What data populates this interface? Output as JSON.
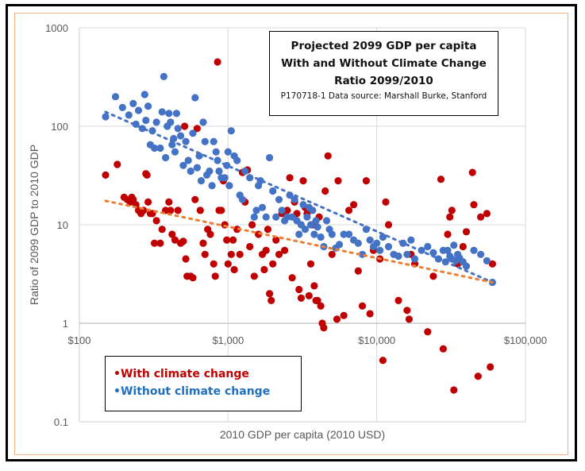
{
  "chart_data": {
    "type": "scatter",
    "title": [
      "Projected 2099 GDP per capita",
      "With and Without Climate Change",
      "Ratio 2099/2010"
    ],
    "subtitle": "P170718-1 Data source: Marshall Burke, Stanford",
    "xlabel": "2010 GDP per capita (2010 USD)",
    "ylabel": "Ratio of 2099 GDP to 2010 GDP",
    "xscale": "log",
    "yscale": "log",
    "xlim": [
      100,
      100000
    ],
    "ylim": [
      0.1,
      1000
    ],
    "xticks": [
      100,
      1000,
      10000,
      100000
    ],
    "xtick_labels": [
      "$100",
      "$1,000",
      "$10,000",
      "$100,000"
    ],
    "yticks": [
      0.1,
      1,
      10,
      100,
      1000
    ],
    "ytick_labels": [
      "0.1",
      "1",
      "10",
      "100",
      "1000"
    ],
    "x_axis_crosses_at": 1,
    "grid": true,
    "legend": {
      "position": "bottom-left",
      "items": [
        "•With climate change",
        "•Without climate change"
      ]
    },
    "series": [
      {
        "name": "With climate change",
        "color": "#c00000",
        "trendline": {
          "type": "power",
          "style": "dotted",
          "color": "#ed7d31",
          "from": [
            150,
            17.5
          ],
          "to": [
            60000,
            2.6
          ]
        },
        "points": [
          [
            150,
            32
          ],
          [
            180,
            41
          ],
          [
            200,
            19
          ],
          [
            210,
            18
          ],
          [
            220,
            17
          ],
          [
            225,
            19
          ],
          [
            230,
            18
          ],
          [
            240,
            16
          ],
          [
            250,
            14
          ],
          [
            260,
            13
          ],
          [
            270,
            14
          ],
          [
            280,
            33
          ],
          [
            285,
            32
          ],
          [
            290,
            17
          ],
          [
            300,
            13
          ],
          [
            310,
            13
          ],
          [
            320,
            6.5
          ],
          [
            330,
            11
          ],
          [
            350,
            6.5
          ],
          [
            360,
            9
          ],
          [
            380,
            14
          ],
          [
            400,
            17
          ],
          [
            410,
            14
          ],
          [
            420,
            8
          ],
          [
            440,
            7
          ],
          [
            460,
            14
          ],
          [
            480,
            6.5
          ],
          [
            500,
            6.8
          ],
          [
            510,
            100
          ],
          [
            520,
            4.5
          ],
          [
            530,
            3
          ],
          [
            560,
            3
          ],
          [
            580,
            2.9
          ],
          [
            600,
            18
          ],
          [
            620,
            95
          ],
          [
            650,
            14
          ],
          [
            680,
            6.5
          ],
          [
            700,
            5
          ],
          [
            730,
            9
          ],
          [
            760,
            8
          ],
          [
            800,
            4
          ],
          [
            820,
            3
          ],
          [
            850,
            450
          ],
          [
            870,
            14
          ],
          [
            900,
            14
          ],
          [
            930,
            28
          ],
          [
            950,
            10
          ],
          [
            980,
            7
          ],
          [
            1000,
            4
          ],
          [
            1050,
            5
          ],
          [
            1080,
            7
          ],
          [
            1100,
            3.5
          ],
          [
            1150,
            9
          ],
          [
            1200,
            5
          ],
          [
            1250,
            34
          ],
          [
            1300,
            17
          ],
          [
            1350,
            36
          ],
          [
            1400,
            6
          ],
          [
            1450,
            10
          ],
          [
            1500,
            3
          ],
          [
            1600,
            8
          ],
          [
            1700,
            5
          ],
          [
            1750,
            3.5
          ],
          [
            1800,
            5.5
          ],
          [
            1850,
            9
          ],
          [
            1900,
            2
          ],
          [
            1950,
            1.7
          ],
          [
            2000,
            4
          ],
          [
            2100,
            7
          ],
          [
            2200,
            5
          ],
          [
            2300,
            13
          ],
          [
            2400,
            5.5
          ],
          [
            2500,
            14
          ],
          [
            2600,
            30
          ],
          [
            2700,
            2.9
          ],
          [
            2800,
            17
          ],
          [
            2900,
            13
          ],
          [
            3000,
            2.2
          ],
          [
            3100,
            1.8
          ],
          [
            3200,
            28
          ],
          [
            3300,
            15
          ],
          [
            3400,
            13
          ],
          [
            3500,
            1.9
          ],
          [
            3600,
            4
          ],
          [
            3700,
            10
          ],
          [
            3800,
            2.4
          ],
          [
            3900,
            1.7
          ],
          [
            4000,
            1.7
          ],
          [
            4100,
            12
          ],
          [
            4200,
            1.5
          ],
          [
            4300,
            1.0
          ],
          [
            4400,
            0.9
          ],
          [
            4500,
            22
          ],
          [
            4700,
            50
          ],
          [
            5000,
            5
          ],
          [
            5400,
            1.1
          ],
          [
            5500,
            28
          ],
          [
            6000,
            1.2
          ],
          [
            6500,
            14
          ],
          [
            7000,
            16
          ],
          [
            7500,
            3.4
          ],
          [
            8000,
            1.5
          ],
          [
            8500,
            28
          ],
          [
            9000,
            1.25
          ],
          [
            9500,
            5.5
          ],
          [
            10500,
            4.5
          ],
          [
            11000,
            0.42
          ],
          [
            11500,
            17
          ],
          [
            12000,
            10
          ],
          [
            14000,
            1.7
          ],
          [
            16000,
            1.35
          ],
          [
            16500,
            1.1
          ],
          [
            17000,
            5
          ],
          [
            18000,
            4
          ],
          [
            22000,
            0.82
          ],
          [
            24000,
            3
          ],
          [
            27000,
            29
          ],
          [
            28000,
            0.55
          ],
          [
            30000,
            8
          ],
          [
            31000,
            12
          ],
          [
            32000,
            14
          ],
          [
            33000,
            0.21
          ],
          [
            35000,
            4
          ],
          [
            38000,
            6
          ],
          [
            40000,
            8.5
          ],
          [
            44000,
            34
          ],
          [
            45000,
            16
          ],
          [
            48000,
            0.29
          ],
          [
            50000,
            12
          ],
          [
            55000,
            13
          ],
          [
            58000,
            0.36
          ],
          [
            60000,
            4
          ]
        ]
      },
      {
        "name": "Without climate change",
        "color": "#4472c4",
        "trendline": {
          "type": "power",
          "style": "dotted",
          "color": "#4472c4",
          "from": [
            150,
            140
          ],
          "to": [
            60000,
            2.6
          ]
        },
        "points": [
          [
            150,
            125
          ],
          [
            175,
            200
          ],
          [
            195,
            155
          ],
          [
            215,
            130
          ],
          [
            230,
            170
          ],
          [
            240,
            105
          ],
          [
            250,
            145
          ],
          [
            265,
            95
          ],
          [
            275,
            210
          ],
          [
            280,
            115
          ],
          [
            290,
            160
          ],
          [
            300,
            65
          ],
          [
            310,
            90
          ],
          [
            320,
            60
          ],
          [
            330,
            110
          ],
          [
            350,
            60
          ],
          [
            360,
            140
          ],
          [
            370,
            320
          ],
          [
            380,
            48
          ],
          [
            390,
            100
          ],
          [
            400,
            135
          ],
          [
            410,
            110
          ],
          [
            420,
            65
          ],
          [
            430,
            75
          ],
          [
            440,
            55
          ],
          [
            450,
            135
          ],
          [
            460,
            95
          ],
          [
            480,
            80
          ],
          [
            500,
            40
          ],
          [
            520,
            70
          ],
          [
            540,
            45
          ],
          [
            560,
            35
          ],
          [
            580,
            85
          ],
          [
            600,
            195
          ],
          [
            620,
            38
          ],
          [
            640,
            50
          ],
          [
            660,
            28
          ],
          [
            680,
            110
          ],
          [
            700,
            70
          ],
          [
            720,
            32
          ],
          [
            750,
            35
          ],
          [
            780,
            25
          ],
          [
            800,
            70
          ],
          [
            830,
            55
          ],
          [
            850,
            45
          ],
          [
            870,
            35
          ],
          [
            900,
            30
          ],
          [
            950,
            30
          ],
          [
            980,
            40
          ],
          [
            1000,
            55
          ],
          [
            1020,
            25
          ],
          [
            1050,
            90
          ],
          [
            1100,
            50
          ],
          [
            1150,
            45
          ],
          [
            1200,
            20
          ],
          [
            1250,
            18
          ],
          [
            1300,
            35
          ],
          [
            1400,
            30
          ],
          [
            1500,
            12
          ],
          [
            1550,
            14
          ],
          [
            1600,
            25
          ],
          [
            1650,
            28
          ],
          [
            1700,
            15
          ],
          [
            1800,
            12
          ],
          [
            1900,
            48
          ],
          [
            2000,
            22
          ],
          [
            2100,
            12
          ],
          [
            2200,
            18
          ],
          [
            2300,
            14
          ],
          [
            2400,
            11
          ],
          [
            2500,
            12
          ],
          [
            2600,
            20
          ],
          [
            2700,
            12
          ],
          [
            2800,
            18
          ],
          [
            2900,
            11
          ],
          [
            3000,
            8
          ],
          [
            3100,
            10
          ],
          [
            3200,
            16
          ],
          [
            3300,
            9
          ],
          [
            3400,
            12
          ],
          [
            3500,
            15
          ],
          [
            3600,
            10
          ],
          [
            3700,
            14
          ],
          [
            3800,
            8
          ],
          [
            3900,
            11
          ],
          [
            4000,
            9.5
          ],
          [
            4200,
            7.5
          ],
          [
            4400,
            6
          ],
          [
            4600,
            11
          ],
          [
            4800,
            9
          ],
          [
            5000,
            8
          ],
          [
            5300,
            5.8
          ],
          [
            5600,
            6.3
          ],
          [
            6000,
            8
          ],
          [
            6500,
            8
          ],
          [
            7000,
            7
          ],
          [
            7500,
            6.5
          ],
          [
            8000,
            5
          ],
          [
            8500,
            9
          ],
          [
            9000,
            7
          ],
          [
            9500,
            6
          ],
          [
            10000,
            6.5
          ],
          [
            10500,
            5.5
          ],
          [
            11000,
            7.5
          ],
          [
            12000,
            6
          ],
          [
            13000,
            5
          ],
          [
            14000,
            4.8
          ],
          [
            15000,
            6.5
          ],
          [
            16000,
            5
          ],
          [
            17000,
            7
          ],
          [
            18000,
            4.5
          ],
          [
            20000,
            5.5
          ],
          [
            22000,
            6
          ],
          [
            24000,
            5.2
          ],
          [
            26000,
            4.5
          ],
          [
            28000,
            5.5
          ],
          [
            29000,
            4.2
          ],
          [
            30000,
            5.5
          ],
          [
            31000,
            4.8
          ],
          [
            32000,
            4.5
          ],
          [
            33000,
            6.2
          ],
          [
            34000,
            4.3
          ],
          [
            35000,
            5
          ],
          [
            36000,
            4.6
          ],
          [
            38000,
            4.2
          ],
          [
            40000,
            3.8
          ],
          [
            45000,
            5.5
          ],
          [
            50000,
            5
          ],
          [
            55000,
            4.3
          ],
          [
            60000,
            2.6
          ]
        ]
      }
    ]
  }
}
